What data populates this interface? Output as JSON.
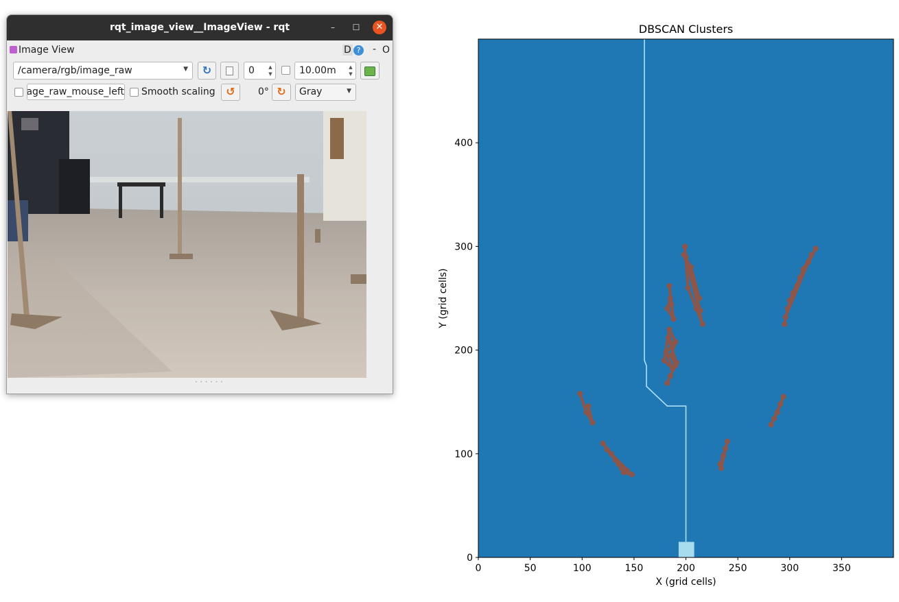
{
  "window": {
    "title": "rqt_image_view__ImageView - rqt",
    "minimize_glyph": "–",
    "maximize_glyph": "☐",
    "close_glyph": "✕"
  },
  "dock": {
    "title": "Image View",
    "d_label": "D",
    "help_glyph": "?",
    "dash_label": "-",
    "o_label": "O"
  },
  "toolbar": {
    "topic_value": "/camera/rgb/image_raw",
    "refresh_glyph": "↻",
    "number_value": "0",
    "rate_value": "10.00m",
    "mouse_topic_value": "/camera/rgb/image_raw_mouse_left",
    "smooth_scaling_label": "Smooth scaling",
    "rotate_left_glyph": "↺",
    "rotation_label": "0°",
    "rotate_right_glyph": "↻",
    "color_scheme_value": "Gray",
    "smooth_scaling_checked": false,
    "mouse_publish_checked": false,
    "rate_enabled_checked": false,
    "dropdown_glyph": "▼"
  },
  "colors": {
    "background": "#1f77b4",
    "clusters": "#8c564b",
    "path": "#aee0ff",
    "robot": "#a6dcee",
    "window_titlebar": "#2f2f2f",
    "close_button": "#e95420"
  },
  "chart_data": {
    "type": "heatmap",
    "title": "DBSCAN Clusters",
    "xlabel": "X (grid cells)",
    "ylabel": "Y (grid cells)",
    "xlim": [
      0,
      400
    ],
    "ylim": [
      0,
      500
    ],
    "xticks": [
      0,
      50,
      100,
      150,
      200,
      250,
      300,
      350
    ],
    "yticks": [
      0,
      100,
      200,
      300,
      400
    ],
    "grid": false,
    "path": [
      [
        160,
        500
      ],
      [
        160,
        190
      ],
      [
        162,
        185
      ],
      [
        162,
        165
      ],
      [
        182,
        146
      ],
      [
        200,
        146
      ],
      [
        200,
        15
      ]
    ],
    "robot": {
      "x": [
        193,
        208
      ],
      "y": [
        0,
        15
      ]
    },
    "clusters": [
      {
        "x": [
          [
            199,
            300
          ],
          [
            202,
            260
          ],
          [
            210,
            240
          ],
          [
            216,
            225
          ],
          [
            200,
            290
          ],
          [
            206,
            270
          ],
          [
            213,
            250
          ],
          [
            205,
            280
          ],
          [
            198,
            292
          ],
          [
            214,
            238
          ]
        ]
      },
      {
        "x": [
          [
            182,
            168
          ],
          [
            185,
            175
          ],
          [
            190,
            185
          ],
          [
            186,
            195
          ],
          [
            190,
            208
          ],
          [
            184,
            220
          ],
          [
            179,
            190
          ],
          [
            187,
            182
          ],
          [
            181,
            198
          ],
          [
            188,
            205
          ],
          [
            183,
            212
          ],
          [
            191,
            188
          ]
        ]
      },
      {
        "x": [
          [
            185,
            250
          ],
          [
            182,
            240
          ],
          [
            188,
            230
          ],
          [
            184,
            262
          ],
          [
            186,
            244
          ]
        ]
      },
      {
        "x": [
          [
            295,
            225
          ],
          [
            298,
            240
          ],
          [
            303,
            255
          ],
          [
            310,
            270
          ],
          [
            318,
            285
          ],
          [
            325,
            298
          ],
          [
            300,
            248
          ],
          [
            307,
            262
          ],
          [
            313,
            278
          ],
          [
            321,
            292
          ],
          [
            296,
            232
          ]
        ]
      },
      {
        "x": [
          [
            98,
            158
          ],
          [
            104,
            140
          ],
          [
            110,
            130
          ],
          [
            106,
            146
          ]
        ]
      },
      {
        "x": [
          [
            120,
            110
          ],
          [
            128,
            100
          ],
          [
            135,
            90
          ],
          [
            140,
            82
          ],
          [
            148,
            80
          ],
          [
            124,
            104
          ],
          [
            132,
            94
          ],
          [
            138,
            86
          ],
          [
            143,
            84
          ]
        ]
      },
      {
        "x": [
          [
            233,
            90
          ],
          [
            236,
            98
          ],
          [
            240,
            112
          ],
          [
            234,
            86
          ],
          [
            238,
            105
          ]
        ]
      },
      {
        "x": [
          [
            282,
            128
          ],
          [
            288,
            140
          ],
          [
            294,
            155
          ],
          [
            285,
            134
          ],
          [
            291,
            148
          ]
        ]
      }
    ]
  }
}
